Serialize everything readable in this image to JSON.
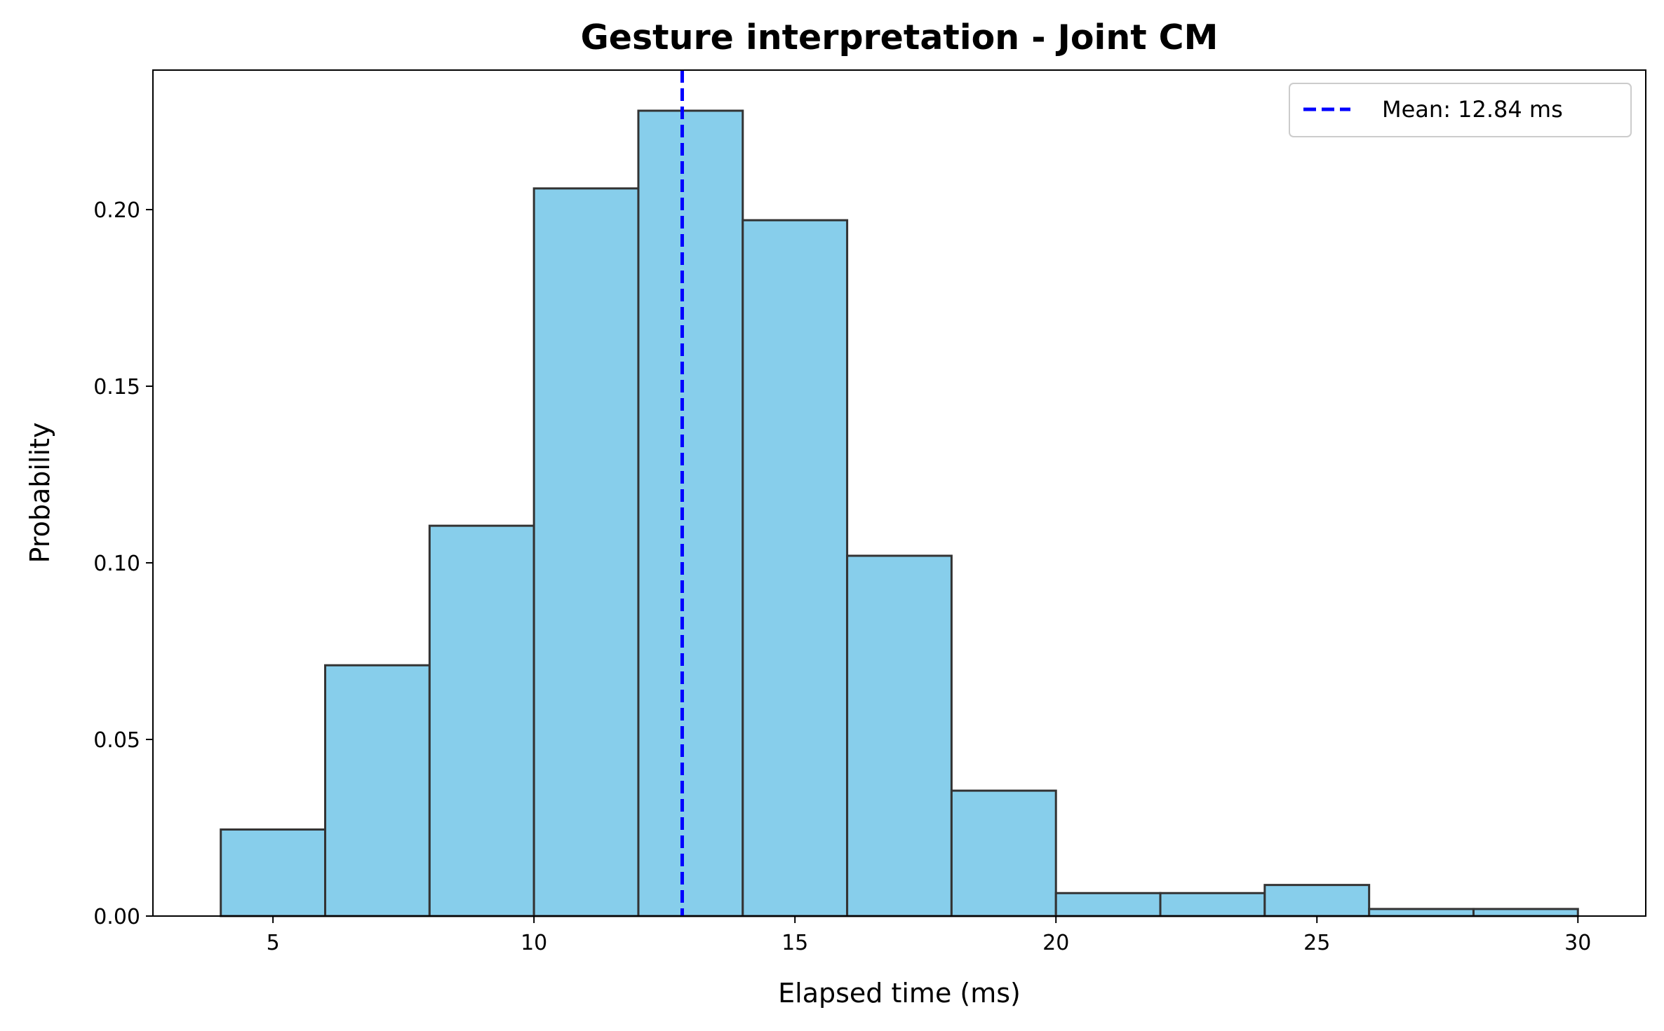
{
  "chart_data": {
    "type": "bar",
    "title": "Gesture interpretation - Joint CM",
    "xlabel": "Elapsed time (ms)",
    "ylabel": "Probability",
    "xlim": [
      2.7,
      31.3
    ],
    "ylim": [
      0,
      0.2395
    ],
    "xticks": [
      5,
      10,
      15,
      20,
      25,
      30
    ],
    "xtick_labels": [
      "5",
      "10",
      "15",
      "20",
      "25",
      "30"
    ],
    "yticks": [
      0,
      0.05,
      0.1,
      0.15,
      0.2
    ],
    "ytick_labels": [
      "0.00",
      "0.05",
      "0.10",
      "0.15",
      "0.20"
    ],
    "bin_edges": [
      4,
      6,
      8,
      10,
      12,
      14,
      16,
      18,
      20,
      22,
      24,
      26,
      28,
      30
    ],
    "values": [
      0.0245,
      0.071,
      0.1105,
      0.206,
      0.228,
      0.197,
      0.102,
      0.0355,
      0.0065,
      0.0065,
      0.0088,
      0.002,
      0.002
    ],
    "bar_color": "#87CEEB",
    "bar_edge_color": "#333333",
    "mean": {
      "value": 12.84,
      "color": "#0000FF",
      "style": "dashed"
    },
    "legend": {
      "entries": [
        "Mean: 12.84 ms"
      ],
      "placement": "top-right"
    },
    "grid": false
  }
}
